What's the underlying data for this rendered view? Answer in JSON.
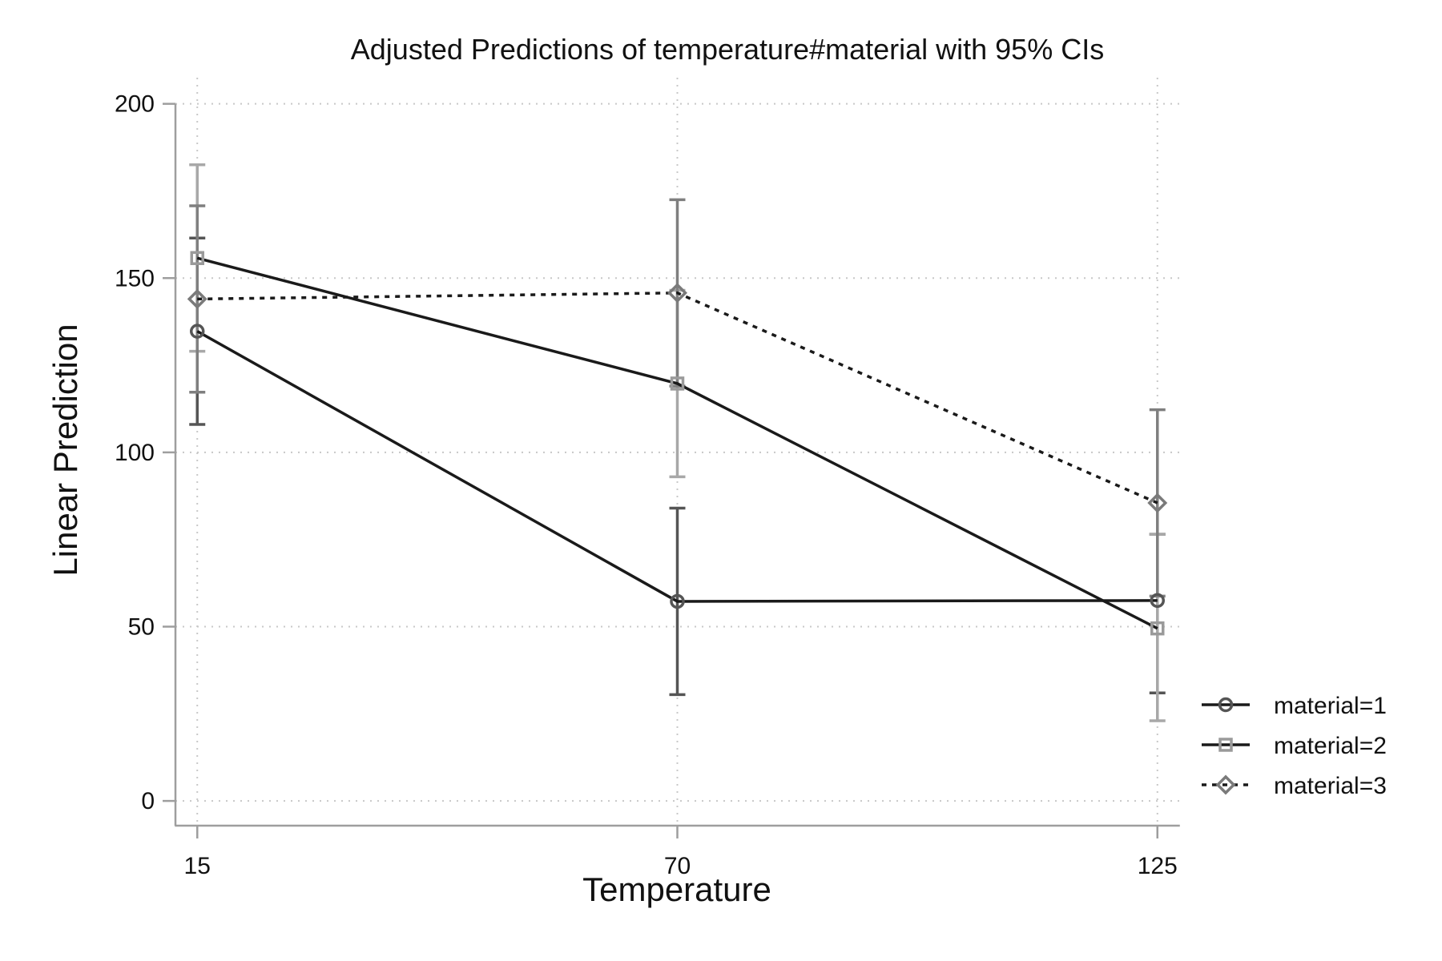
{
  "chart_data": {
    "type": "line",
    "title": "Adjusted Predictions of temperature#material with 95% CIs",
    "xlabel": "Temperature",
    "ylabel": "Linear Prediction",
    "x": [
      15,
      70,
      125
    ],
    "x_tick_labels": [
      "15",
      "70",
      "125"
    ],
    "y_ticks": [
      0,
      50,
      100,
      150,
      200
    ],
    "y_tick_labels": [
      "0",
      "50",
      "100",
      "150",
      "200"
    ],
    "xlim": [
      12.5,
      127.5
    ],
    "ylim": [
      -2.5,
      207.5
    ],
    "grid": true,
    "legend_position": "right",
    "series": [
      {
        "name": "material=1",
        "marker": "circle",
        "line_style": "solid",
        "line_color": "#1a1a1a",
        "marker_color": "#555555",
        "ci_color": "#555555",
        "values": [
          134.75,
          57.25,
          57.5
        ],
        "ci_low": [
          108.0,
          30.5,
          31.0
        ],
        "ci_high": [
          161.5,
          84.0,
          76.5
        ]
      },
      {
        "name": "material=2",
        "marker": "square",
        "line_style": "solid",
        "line_color": "#1a1a1a",
        "marker_color": "#9a9a9a",
        "ci_color": "#a8a8a8",
        "values": [
          155.75,
          119.75,
          49.5
        ],
        "ci_low": [
          129.0,
          93.0,
          23.0
        ],
        "ci_high": [
          182.5,
          146.5,
          76.5
        ]
      },
      {
        "name": "material=3",
        "marker": "diamond",
        "line_style": "dashed",
        "line_color": "#1a1a1a",
        "marker_color": "#7a7a7a",
        "ci_color": "#7f7f7f",
        "values": [
          144.0,
          145.75,
          85.5
        ],
        "ci_low": [
          117.25,
          119.0,
          58.75
        ],
        "ci_high": [
          170.75,
          172.5,
          112.25
        ]
      }
    ]
  }
}
